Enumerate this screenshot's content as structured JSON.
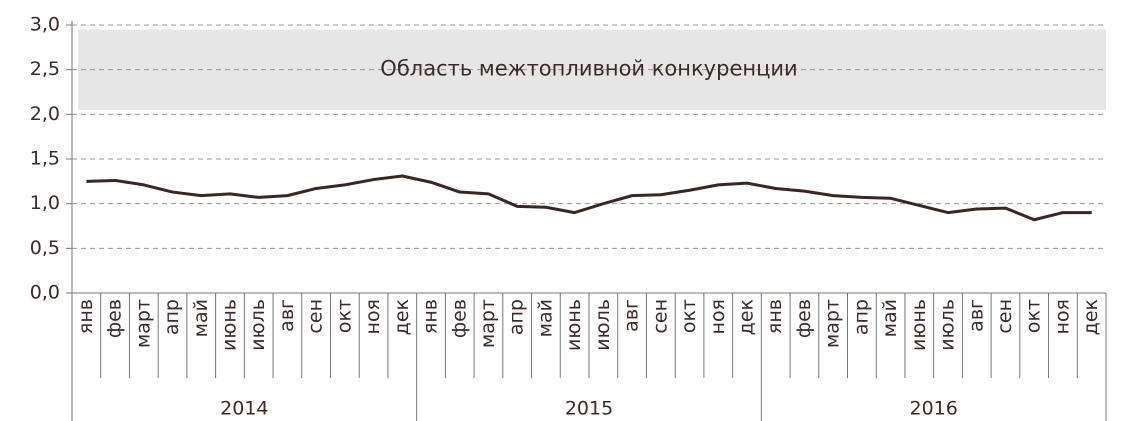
{
  "chart_data": {
    "type": "line",
    "categories": [
      "янв",
      "фев",
      "март",
      "апр",
      "май",
      "июнь",
      "июль",
      "авг",
      "сен",
      "окт",
      "ноя",
      "дек",
      "янв",
      "фев",
      "март",
      "апр",
      "май",
      "июнь",
      "июль",
      "авг",
      "сен",
      "окт",
      "ноя",
      "дек",
      "янв",
      "фев",
      "март",
      "апр",
      "май",
      "июнь",
      "июль",
      "авг",
      "сен",
      "окт",
      "ноя",
      "дек"
    ],
    "groups": [
      "2014",
      "2015",
      "2016"
    ],
    "series": [
      {
        "color": "#3a2626",
        "values": [
          1.25,
          1.26,
          1.21,
          1.13,
          1.09,
          1.11,
          1.07,
          1.09,
          1.17,
          1.21,
          1.27,
          1.31,
          1.24,
          1.13,
          1.11,
          0.97,
          0.96,
          0.9,
          1.0,
          1.09,
          1.1,
          1.15,
          1.21,
          1.23,
          1.17,
          1.14,
          1.09,
          1.07,
          1.06,
          0.98,
          0.9,
          0.94,
          0.95,
          0.82,
          0.9,
          0.9
        ]
      }
    ],
    "ylim": [
      0,
      3
    ],
    "yticks": [
      {
        "value": 0,
        "label": "0,0"
      },
      {
        "value": 0.5,
        "label": "0,5"
      },
      {
        "value": 1,
        "label": "1,0"
      },
      {
        "value": 1.5,
        "label": "1,5"
      },
      {
        "value": 2,
        "label": "2,0"
      },
      {
        "value": 2.5,
        "label": "2,5"
      },
      {
        "value": 3,
        "label": "3,0"
      }
    ],
    "grid": true,
    "band": {
      "label": "Область межтопливной конкуренции",
      "range": [
        2.05,
        2.95
      ],
      "color": "#e6e6e6"
    }
  }
}
